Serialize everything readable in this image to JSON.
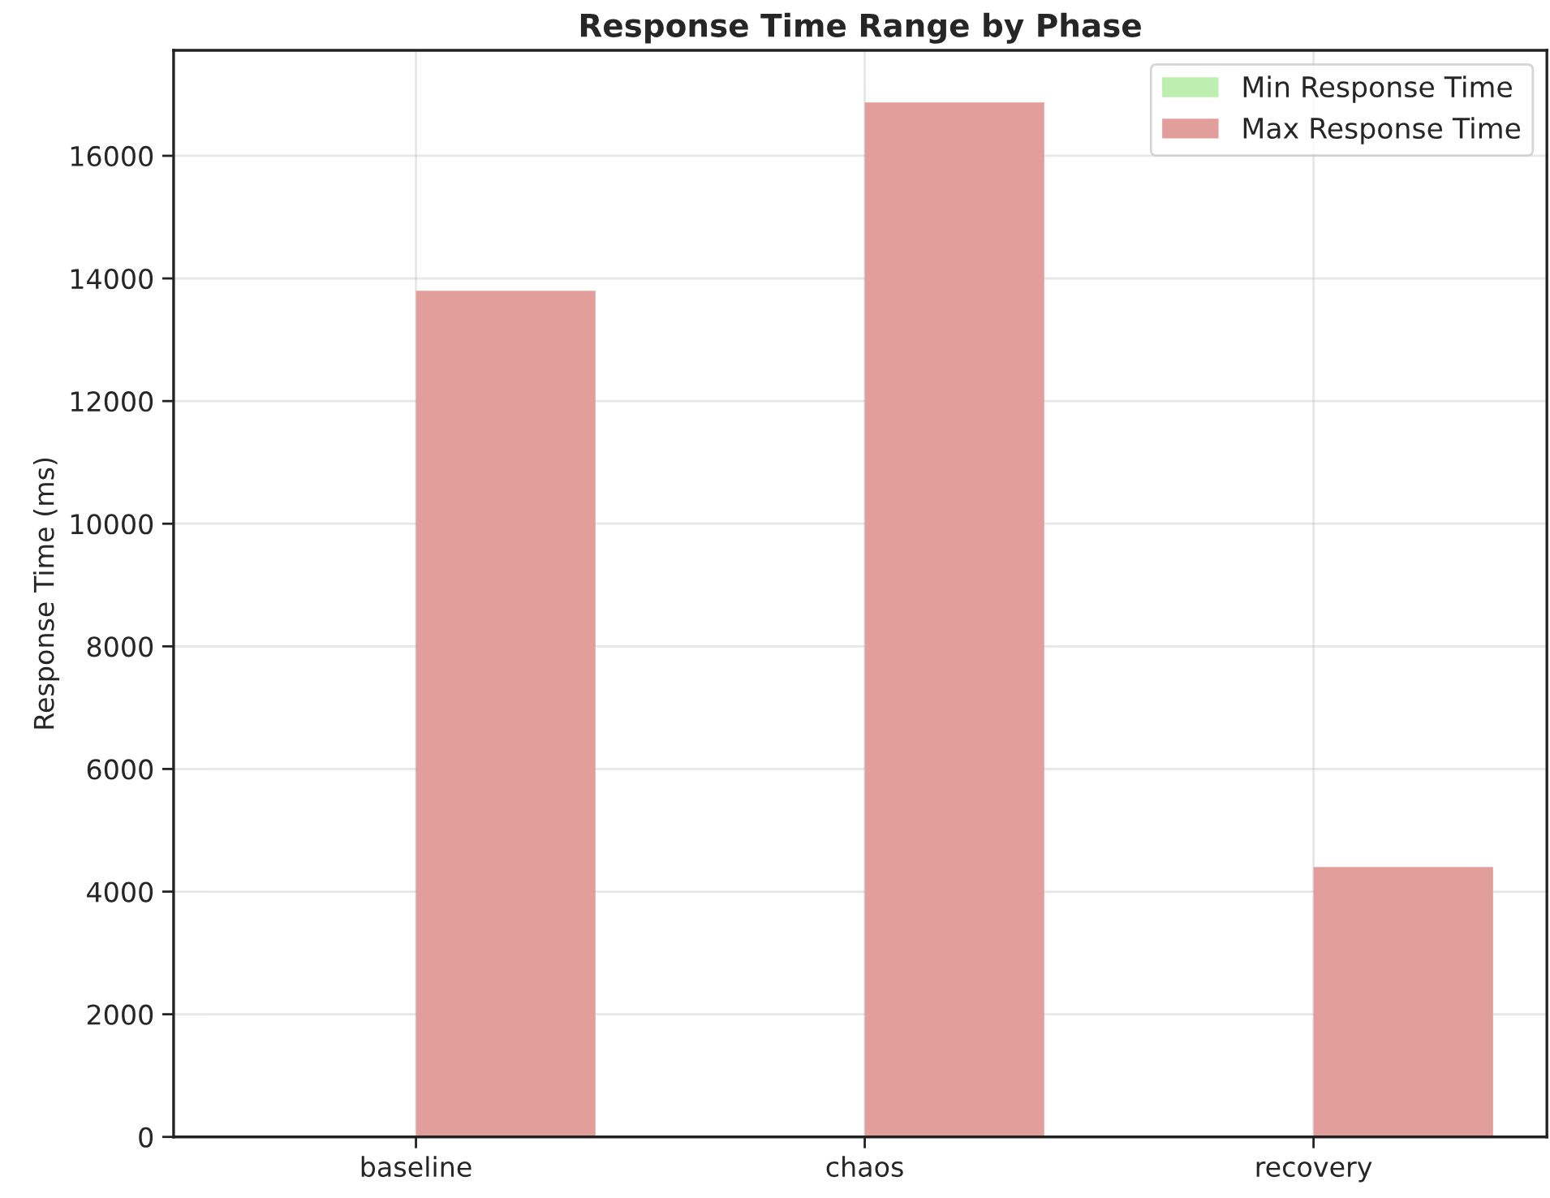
{
  "chart_data": {
    "type": "bar",
    "title": "Response Time Range by Phase",
    "ylabel": "Response Time (ms)",
    "categories": [
      "baseline",
      "chaos",
      "recovery"
    ],
    "series": [
      {
        "name": "Min Response Time",
        "color": "#bcefb0",
        "values": [
          null,
          null,
          null
        ]
      },
      {
        "name": "Max Response Time",
        "color": "#e29e9a",
        "values": [
          13800,
          16870,
          4400
        ]
      }
    ],
    "ylim": [
      0,
      17720
    ],
    "yticks": [
      0,
      2000,
      4000,
      6000,
      8000,
      10000,
      12000,
      14000,
      16000
    ],
    "grid": true,
    "legend": "top right"
  }
}
